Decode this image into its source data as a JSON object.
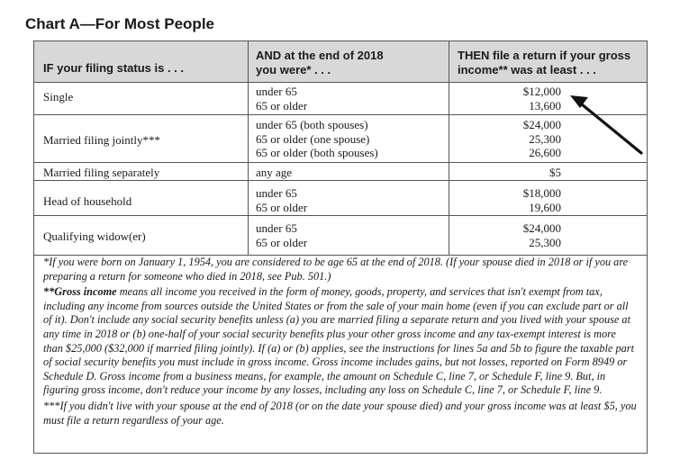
{
  "chart_title": "Chart A—For Most People",
  "headers": {
    "status": "IF your filing status is . . .",
    "age_line1": "AND at the end of 2018",
    "age_line2": "you were* . . .",
    "income_line1": "THEN file a return if your gross",
    "income_line2": "income** was at least . . ."
  },
  "rows": [
    {
      "status": "Single",
      "ages": [
        "under 65",
        "65 or older"
      ],
      "incomes": [
        "$12,000",
        "13,600"
      ]
    },
    {
      "status": "Married filing jointly***",
      "ages": [
        "under 65 (both spouses)",
        "65 or older (one spouse)",
        "65 or older (both spouses)"
      ],
      "incomes": [
        "$24,000",
        "25,300",
        "26,600"
      ]
    },
    {
      "status": "Married filing separately",
      "ages": [
        "any age"
      ],
      "incomes": [
        "$5"
      ]
    },
    {
      "status": "Head of household",
      "ages": [
        "under 65",
        "65 or older"
      ],
      "incomes": [
        "$18,000",
        "19,600"
      ]
    },
    {
      "status": "Qualifying widow(er)",
      "ages": [
        "under 65",
        "65 or older"
      ],
      "incomes": [
        "$24,000",
        "25,300"
      ]
    }
  ],
  "footnotes": {
    "note1": "*If you were born on January 1, 1954, you are considered to be age 65 at the end of 2018. (If your spouse died in 2018 or if you are preparing a return for someone who died in 2018, see Pub. 501.)",
    "note2_bold": "**Gross income",
    "note2": " means all income you received in the form of money, goods, property, and services that isn't exempt from tax, including any income from sources outside the United States or from the sale of your main home (even if you can exclude part or all of it). Don't include any social security benefits unless (a) you are married filing a separate return and you lived with your spouse at any time in 2018 or (b) one-half of your social security benefits plus your other gross income and any tax-exempt interest is more than $25,000 ($32,000 if married filing jointly). If (a) or (b) applies, see the instructions for lines 5a and 5b to figure the taxable part of social security benefits you must include in gross income. Gross income includes gains, but not losses, reported on Form 8949 or Schedule D. Gross income from a business means, for example, the amount on Schedule C, line 7, or Schedule F, line 9. But, in figuring gross income, don't reduce your income by any losses, including any loss on Schedule C, line 7, or Schedule F, line 9.",
    "note3": "***If you didn't live with your spouse at the end of 2018 (or on the date your spouse died) and your gross income was at least $5, you must file a return regardless of your age."
  },
  "colors": {
    "header_bg": "#d8d8d8",
    "rule": "#555555",
    "arrow": "#111111"
  }
}
